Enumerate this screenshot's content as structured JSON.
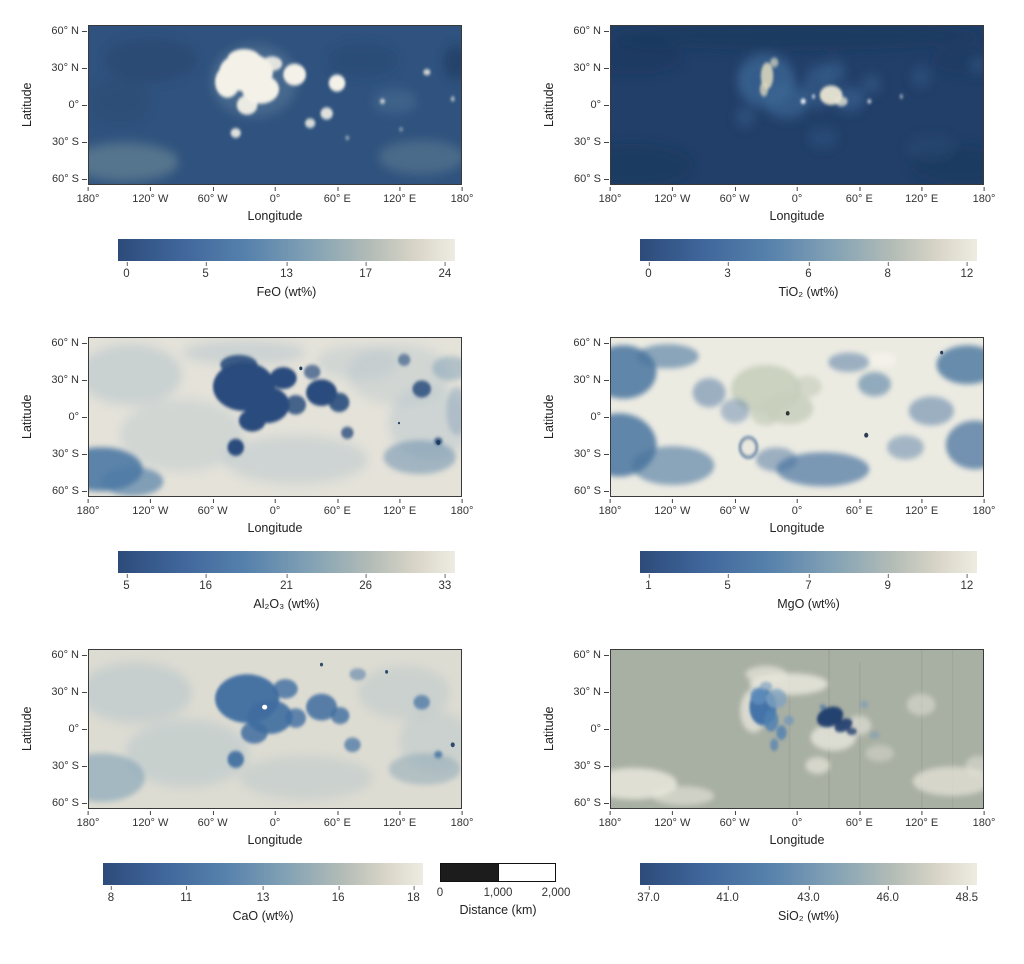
{
  "axes": {
    "lat_label": "Latitude",
    "lon_label": "Longitude",
    "lat": [
      "60° N",
      "30° N",
      "0°",
      "30° S",
      "60° S"
    ],
    "lon": [
      "180°",
      "120° W",
      "60° W",
      "0°",
      "60° E",
      "120° E",
      "180°"
    ]
  },
  "panels": [
    {
      "id": "feo",
      "cb_label": "FeO (wt%)",
      "cb_ticks": [
        "0",
        "5",
        "13",
        "17",
        "24"
      ]
    },
    {
      "id": "tio2",
      "cb_label": "TiO₂ (wt%)",
      "cb_ticks": [
        "0",
        "3",
        "6",
        "8",
        "12"
      ]
    },
    {
      "id": "al2o3",
      "cb_label": "Al₂O₃ (wt%)",
      "cb_ticks": [
        "5",
        "16",
        "21",
        "26",
        "33"
      ]
    },
    {
      "id": "mgo",
      "cb_label": "MgO (wt%)",
      "cb_ticks": [
        "1",
        "5",
        "7",
        "9",
        "12"
      ]
    },
    {
      "id": "cao",
      "cb_label": "CaO (wt%)",
      "cb_ticks": [
        "8",
        "11",
        "13",
        "16",
        "18"
      ]
    },
    {
      "id": "sio2",
      "cb_label": "SiO₂ (wt%)",
      "cb_ticks": [
        "37.0",
        "41.0",
        "43.0",
        "46.0",
        "48.5"
      ]
    }
  ],
  "scalebar": {
    "ticks": [
      "0",
      "1,000",
      "2,000"
    ],
    "label": "Distance (km)"
  },
  "colors": {
    "colormap_stops": [
      [
        "#2d4b7a",
        0
      ],
      [
        "#3f659a",
        18
      ],
      [
        "#5681ac",
        38
      ],
      [
        "#84a3b5",
        58
      ],
      [
        "#b3bcb6",
        75
      ],
      [
        "#d8d4c7",
        88
      ],
      [
        "#eeece2",
        100
      ]
    ],
    "map_frame": "#3a3a3a",
    "scalebar_fill": "#1c1c1c"
  },
  "chart_data": [
    {
      "type": "heatmap",
      "title": "FeO (wt%)",
      "xlabel": "Longitude",
      "ylabel": "Latitude",
      "x_range_deg": [
        -180,
        180
      ],
      "y_range_deg": [
        -65,
        65
      ],
      "x_tick_labels": [
        "180°",
        "120° W",
        "60° W",
        "0°",
        "60° E",
        "120° E",
        "180°"
      ],
      "y_tick_labels": [
        "60° N",
        "30° N",
        "0°",
        "30° S",
        "60° S"
      ],
      "colorbar_ticks": [
        0,
        5,
        13,
        17,
        24
      ],
      "value_range_wt_pct": [
        0,
        24
      ],
      "colormap": "dark blue (low) to off-white (high)",
      "pattern": "high FeO (white) over nearside maria cluster near 60°W–40°E, 0–45°N; low FeO (blue) across highlands; faint lighter haze near southern edges"
    },
    {
      "type": "heatmap",
      "title": "TiO₂ (wt%)",
      "xlabel": "Longitude",
      "ylabel": "Latitude",
      "x_range_deg": [
        -180,
        180
      ],
      "y_range_deg": [
        -65,
        65
      ],
      "x_tick_labels": [
        "180°",
        "120° W",
        "60° W",
        "0°",
        "60° E",
        "120° E",
        "180°"
      ],
      "y_tick_labels": [
        "60° N",
        "30° N",
        "0°",
        "30° S",
        "60° S"
      ],
      "colorbar_ticks": [
        0,
        3,
        6,
        8,
        12
      ],
      "value_range_wt_pct": [
        0,
        12
      ],
      "colormap": "dark blue (low) to off-white (high)",
      "pattern": "mostly low (dark navy); moderate lighter-blue patches over nearside maria; small cream/white highs near 55°W 25°N and 30°E 5°N"
    },
    {
      "type": "heatmap",
      "title": "Al₂O₃ (wt%)",
      "xlabel": "Longitude",
      "ylabel": "Latitude",
      "x_range_deg": [
        -180,
        180
      ],
      "y_range_deg": [
        -65,
        65
      ],
      "x_tick_labels": [
        "180°",
        "120° W",
        "60° W",
        "0°",
        "60° E",
        "120° E",
        "180°"
      ],
      "y_tick_labels": [
        "60° N",
        "30° N",
        "0°",
        "30° S",
        "60° S"
      ],
      "colorbar_ticks": [
        5,
        16,
        21,
        26,
        33
      ],
      "value_range_wt_pct": [
        5,
        33
      ],
      "colormap": "dark blue (low) to off-white (high)",
      "pattern": "low Al₂O₃ (dark blue) over nearside maria and southwest corner; high (white/beige) across highlands"
    },
    {
      "type": "heatmap",
      "title": "MgO (wt%)",
      "xlabel": "Longitude",
      "ylabel": "Latitude",
      "x_range_deg": [
        -180,
        180
      ],
      "y_range_deg": [
        -65,
        65
      ],
      "x_tick_labels": [
        "180°",
        "120° W",
        "60° W",
        "0°",
        "60° E",
        "120° E",
        "180°"
      ],
      "y_tick_labels": [
        "60° N",
        "30° N",
        "0°",
        "30° S",
        "60° S"
      ],
      "colorbar_ticks": [
        1,
        5,
        7,
        9,
        12
      ],
      "value_range_wt_pct": [
        1,
        12
      ],
      "colormap": "dark blue (low) to off-white (high)",
      "pattern": "pale sage-white highs over central nearside (Procellarum region); blue lows along map corners, edges and southern mid-latitudes"
    },
    {
      "type": "heatmap",
      "title": "CaO (wt%)",
      "xlabel": "Longitude",
      "ylabel": "Latitude",
      "x_range_deg": [
        -180,
        180
      ],
      "y_range_deg": [
        -65,
        65
      ],
      "x_tick_labels": [
        "180°",
        "120° W",
        "60° W",
        "0°",
        "60° E",
        "120° E",
        "180°"
      ],
      "y_tick_labels": [
        "60° N",
        "30° N",
        "0°",
        "30° S",
        "60° S"
      ],
      "colorbar_ticks": [
        8,
        11,
        13,
        16,
        18
      ],
      "value_range_wt_pct": [
        8,
        18
      ],
      "colormap": "dark blue (low) to off-white (high)",
      "pattern": "low CaO (medium blue) over nearside maria; high (beige/white) over highlands",
      "scalebar": {
        "ticks_km": [
          0,
          1000,
          2000
        ],
        "label": "Distance (km)"
      }
    },
    {
      "type": "heatmap",
      "title": "SiO₂ (wt%)",
      "xlabel": "Longitude",
      "ylabel": "Latitude",
      "x_range_deg": [
        -180,
        180
      ],
      "y_range_deg": [
        -65,
        65
      ],
      "x_tick_labels": [
        "180°",
        "120° W",
        "60° W",
        "0°",
        "60° E",
        "120° E",
        "180°"
      ],
      "y_tick_labels": [
        "60° N",
        "30° N",
        "0°",
        "30° S",
        "60° S"
      ],
      "colorbar_ticks": [
        37.0,
        41.0,
        43.0,
        46.0,
        48.5
      ],
      "value_range_wt_pct": [
        37.0,
        48.5
      ],
      "colormap": "dark blue (low) to off-white (high)",
      "pattern": "near-uniform sage-gray (~43 wt%); blue low patch near 60°W 10°N and dark navy low near 30°E 5°N; whitish slightly-high rims around maria and in south corners"
    }
  ]
}
